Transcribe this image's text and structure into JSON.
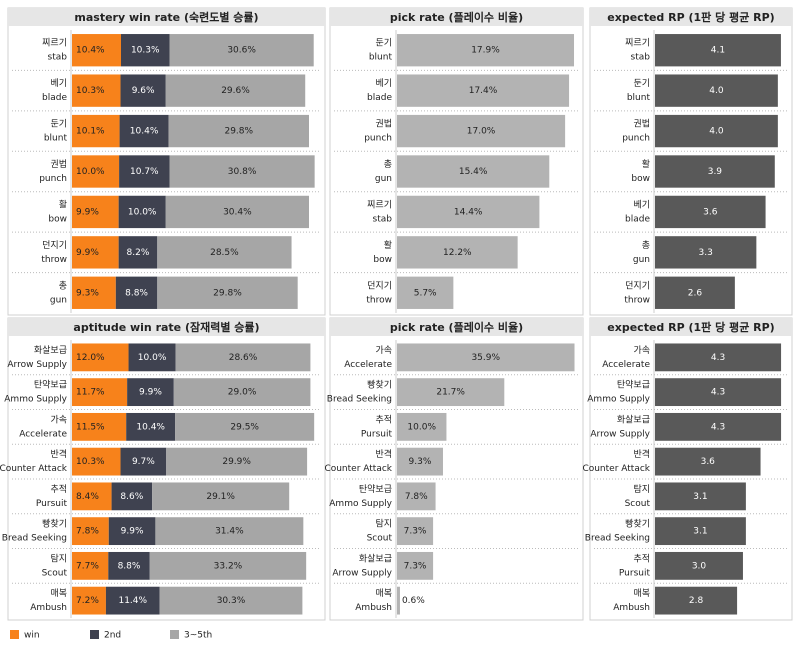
{
  "chart_data": [
    {
      "type": "stacked_bar",
      "title": "mastery win rate (숙련도별 승률)",
      "xlim": [
        0,
        52
      ],
      "categories": [
        {
          "ko": "찌르기",
          "en": "stab"
        },
        {
          "ko": "베기",
          "en": "blade"
        },
        {
          "ko": "둔기",
          "en": "blunt"
        },
        {
          "ko": "권법",
          "en": "punch"
        },
        {
          "ko": "활",
          "en": "bow"
        },
        {
          "ko": "던지기",
          "en": "throw"
        },
        {
          "ko": "총",
          "en": "gun"
        }
      ],
      "series": [
        {
          "name": "win",
          "color": "#f7821b",
          "text_color": "#222222",
          "values": [
            10.4,
            10.3,
            10.1,
            10.0,
            9.9,
            9.9,
            9.3
          ],
          "value_labels": [
            "10.4%",
            "10.3%",
            "10.1%",
            "10.0%",
            "9.9%",
            "9.9%",
            "9.3%"
          ]
        },
        {
          "name": "2nd",
          "color": "#3f4250",
          "text_color": "#ffffff",
          "values": [
            10.3,
            9.6,
            10.4,
            10.7,
            10.0,
            8.2,
            8.8
          ],
          "value_labels": [
            "10.3%",
            "9.6%",
            "10.4%",
            "10.7%",
            "10.0%",
            "8.2%",
            "8.8%"
          ]
        },
        {
          "name": "3~5th",
          "color": "#a6a6a6",
          "text_color": "#222222",
          "values": [
            30.6,
            29.6,
            29.8,
            30.8,
            30.4,
            28.5,
            29.8
          ],
          "value_labels": [
            "30.6%",
            "29.6%",
            "29.8%",
            "30.8%",
            "30.4%",
            "28.5%",
            "29.8%"
          ]
        }
      ]
    },
    {
      "type": "bar",
      "title": "pick rate (플레이수 비율)",
      "xlim": [
        0,
        18
      ],
      "color": "#b3b3b3",
      "text_color": "#222222",
      "categories": [
        {
          "ko": "둔기",
          "en": "blunt"
        },
        {
          "ko": "베기",
          "en": "blade"
        },
        {
          "ko": "권법",
          "en": "punch"
        },
        {
          "ko": "총",
          "en": "gun"
        },
        {
          "ko": "찌르기",
          "en": "stab"
        },
        {
          "ko": "활",
          "en": "bow"
        },
        {
          "ko": "던지기",
          "en": "throw"
        }
      ],
      "values": [
        17.9,
        17.4,
        17.0,
        15.4,
        14.4,
        12.2,
        5.7
      ],
      "value_labels": [
        "17.9%",
        "17.4%",
        "17.0%",
        "15.4%",
        "14.4%",
        "12.2%",
        "5.7%"
      ]
    },
    {
      "type": "bar",
      "title": "expected RP (1판 당 평균 RP)",
      "xlim": [
        0,
        4.2
      ],
      "color": "#595959",
      "text_color": "#ffffff",
      "categories": [
        {
          "ko": "찌르기",
          "en": "stab"
        },
        {
          "ko": "둔기",
          "en": "blunt"
        },
        {
          "ko": "권법",
          "en": "punch"
        },
        {
          "ko": "활",
          "en": "bow"
        },
        {
          "ko": "베기",
          "en": "blade"
        },
        {
          "ko": "총",
          "en": "gun"
        },
        {
          "ko": "던지기",
          "en": "throw"
        }
      ],
      "values": [
        4.1,
        4.0,
        4.0,
        3.9,
        3.6,
        3.3,
        2.6
      ],
      "value_labels": [
        "4.1",
        "4.0",
        "4.0",
        "3.9",
        "3.6",
        "3.3",
        "2.6"
      ]
    },
    {
      "type": "stacked_bar",
      "title": "aptitude win rate (잠재력별 승률)",
      "xlim": [
        0,
        52
      ],
      "categories": [
        {
          "ko": "화살보급",
          "en": "Arrow Supply"
        },
        {
          "ko": "탄약보급",
          "en": "Ammo Supply"
        },
        {
          "ko": "가속",
          "en": "Accelerate"
        },
        {
          "ko": "반격",
          "en": "Counter Attack"
        },
        {
          "ko": "추적",
          "en": "Pursuit"
        },
        {
          "ko": "빵찾기",
          "en": "Bread Seeking"
        },
        {
          "ko": "탐지",
          "en": "Scout"
        },
        {
          "ko": "매복",
          "en": "Ambush"
        }
      ],
      "series": [
        {
          "name": "win",
          "color": "#f7821b",
          "text_color": "#222222",
          "values": [
            12.0,
            11.7,
            11.5,
            10.3,
            8.4,
            7.8,
            7.7,
            7.2
          ],
          "value_labels": [
            "12.0%",
            "11.7%",
            "11.5%",
            "10.3%",
            "8.4%",
            "7.8%",
            "7.7%",
            "7.2%"
          ]
        },
        {
          "name": "2nd",
          "color": "#3f4250",
          "text_color": "#ffffff",
          "values": [
            10.0,
            9.9,
            10.4,
            9.7,
            8.6,
            9.9,
            8.8,
            11.4
          ],
          "value_labels": [
            "10.0%",
            "9.9%",
            "10.4%",
            "9.7%",
            "8.6%",
            "9.9%",
            "8.8%",
            "11.4%"
          ]
        },
        {
          "name": "3~5th",
          "color": "#a6a6a6",
          "text_color": "#222222",
          "values": [
            28.6,
            29.0,
            29.5,
            29.9,
            29.1,
            31.4,
            33.2,
            30.3
          ],
          "value_labels": [
            "28.6%",
            "29.0%",
            "29.5%",
            "29.9%",
            "29.1%",
            "31.4%",
            "33.2%",
            "30.3%"
          ]
        }
      ]
    },
    {
      "type": "bar",
      "title": "pick rate (플레이수 비율)",
      "xlim": [
        0,
        36
      ],
      "color": "#b3b3b3",
      "text_color": "#222222",
      "categories": [
        {
          "ko": "가속",
          "en": "Accelerate"
        },
        {
          "ko": "빵찾기",
          "en": "Bread Seeking"
        },
        {
          "ko": "추적",
          "en": "Pursuit"
        },
        {
          "ko": "반격",
          "en": "Counter Attack"
        },
        {
          "ko": "탄약보급",
          "en": "Ammo Supply"
        },
        {
          "ko": "탐지",
          "en": "Scout"
        },
        {
          "ko": "화살보급",
          "en": "Arrow Supply"
        },
        {
          "ko": "매복",
          "en": "Ambush"
        }
      ],
      "values": [
        35.9,
        21.7,
        10.0,
        9.3,
        7.8,
        7.3,
        7.3,
        0.6
      ],
      "value_labels": [
        "35.9%",
        "21.7%",
        "10.0%",
        "9.3%",
        "7.8%",
        "7.3%",
        "7.3%",
        "0.6%"
      ]
    },
    {
      "type": "bar",
      "title": "expected RP (1판 당 평균 RP)",
      "xlim": [
        0,
        4.4
      ],
      "color": "#595959",
      "text_color": "#ffffff",
      "categories": [
        {
          "ko": "가속",
          "en": "Accelerate"
        },
        {
          "ko": "탄약보급",
          "en": "Ammo Supply"
        },
        {
          "ko": "화살보급",
          "en": "Arrow Supply"
        },
        {
          "ko": "반격",
          "en": "Counter Attack"
        },
        {
          "ko": "탐지",
          "en": "Scout"
        },
        {
          "ko": "빵찾기",
          "en": "Bread Seeking"
        },
        {
          "ko": "추적",
          "en": "Pursuit"
        },
        {
          "ko": "매복",
          "en": "Ambush"
        }
      ],
      "values": [
        4.3,
        4.3,
        4.3,
        3.6,
        3.1,
        3.1,
        3.0,
        2.8
      ],
      "value_labels": [
        "4.3",
        "4.3",
        "4.3",
        "3.6",
        "3.1",
        "3.1",
        "3.0",
        "2.8"
      ]
    }
  ]
}
